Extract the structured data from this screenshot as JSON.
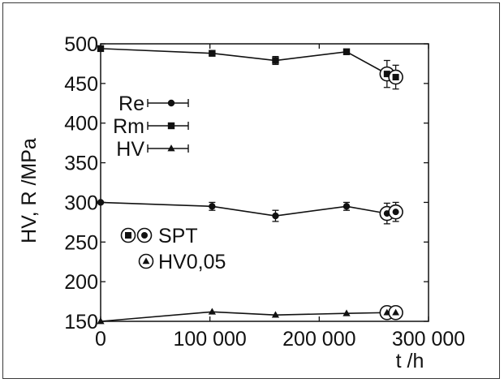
{
  "chart_data": {
    "type": "line",
    "xlabel": "t /h",
    "ylabel": "HV, R /MPa",
    "xlim": [
      0,
      300000
    ],
    "ylim": [
      150,
      500
    ],
    "xticks": [
      0,
      100000,
      200000,
      300000
    ],
    "xtick_labels": [
      "0",
      "100 000",
      "200 000",
      "300 000"
    ],
    "yticks": [
      150,
      200,
      250,
      300,
      350,
      400,
      450,
      500
    ],
    "ytick_labels": [
      "150",
      "200",
      "250",
      "300",
      "350",
      "400",
      "450",
      "500"
    ],
    "grid": false,
    "series": [
      {
        "name": "Re",
        "marker": "circle",
        "x": [
          0,
          102000,
          160000,
          225000
        ],
        "y": [
          300,
          295,
          283,
          295
        ],
        "err": [
          0,
          5,
          7,
          5
        ],
        "spt": {
          "x": [
            262000,
            270000
          ],
          "y": [
            286,
            288
          ],
          "err": [
            13,
            12
          ]
        }
      },
      {
        "name": "Rm",
        "marker": "square",
        "x": [
          0,
          102000,
          160000,
          225000
        ],
        "y": [
          494,
          488,
          479,
          490
        ],
        "err": [
          0,
          3,
          5,
          3
        ],
        "spt": {
          "x": [
            262000,
            270000
          ],
          "y": [
            462,
            458
          ],
          "err": [
            17,
            15
          ]
        }
      },
      {
        "name": "HV",
        "marker": "triangle",
        "x": [
          0,
          102000,
          160000,
          225000
        ],
        "y": [
          150,
          162,
          158,
          160
        ],
        "err": [
          0,
          0,
          0,
          0
        ],
        "spt": {
          "x": [
            262000,
            270000
          ],
          "y": [
            161,
            161
          ],
          "err": [
            0,
            0
          ]
        }
      }
    ],
    "legend": {
      "placement": "upper-left",
      "entries": [
        {
          "label": "Re",
          "marker": "circle"
        },
        {
          "label": "Rm",
          "marker": "square"
        },
        {
          "label": "HV",
          "marker": "triangle"
        }
      ]
    },
    "annotations": [
      {
        "label": "SPT",
        "markers": [
          "square-circled",
          "circle-circled"
        ]
      },
      {
        "label": "HV0,05",
        "markers": [
          "triangle-circled"
        ]
      }
    ]
  }
}
